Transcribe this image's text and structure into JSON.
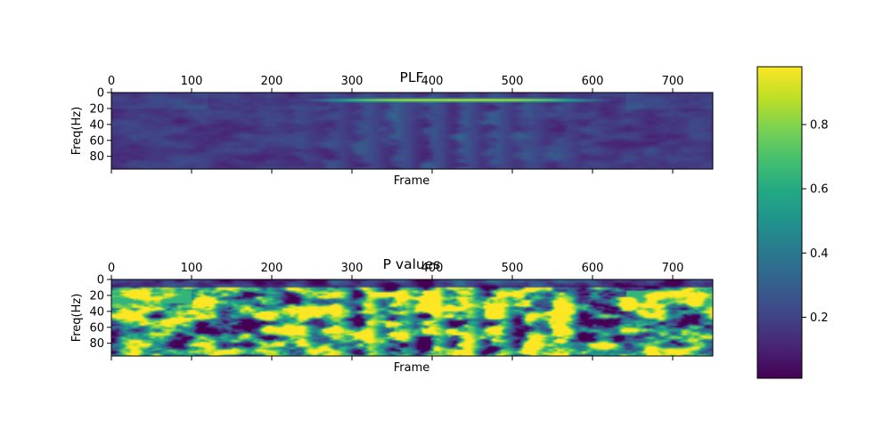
{
  "chart_data": [
    {
      "type": "heatmap",
      "title": "PLF",
      "xlabel": "Frame",
      "ylabel": "Freq(Hz)",
      "xlim": [
        0,
        750
      ],
      "ylim": [
        96,
        0
      ],
      "xticks": [
        0,
        100,
        200,
        300,
        400,
        500,
        600,
        700
      ],
      "yticks": [
        0,
        20,
        40,
        60,
        80
      ],
      "colormap": "viridis",
      "description_values": {
        "band_low_freq_hz": [
          5,
          12
        ],
        "band_frames": [
          240,
          620
        ],
        "band_peak_value": 0.95,
        "background_value_range": [
          0.05,
          0.35
        ]
      }
    },
    {
      "type": "heatmap",
      "title": "P values",
      "xlabel": "Frame",
      "ylabel": "Freq(Hz)",
      "xlim": [
        0,
        750
      ],
      "ylim": [
        96,
        0
      ],
      "xticks": [
        0,
        100,
        200,
        300,
        400,
        500,
        600,
        700
      ],
      "yticks": [
        0,
        20,
        40,
        60,
        80
      ],
      "colormap": "viridis",
      "description_values": {
        "low_value_band_freq_hz": [
          0,
          12
        ],
        "value_range": [
          0.0,
          1.0
        ]
      }
    }
  ],
  "colorbar": {
    "ticks": [
      {
        "label": "0.2",
        "value": 0.2
      },
      {
        "label": "0.4",
        "value": 0.4
      },
      {
        "label": "0.6",
        "value": 0.6
      },
      {
        "label": "0.8",
        "value": 0.8
      }
    ],
    "vmin": 0.01,
    "vmax": 0.98,
    "colormap": "viridis"
  }
}
